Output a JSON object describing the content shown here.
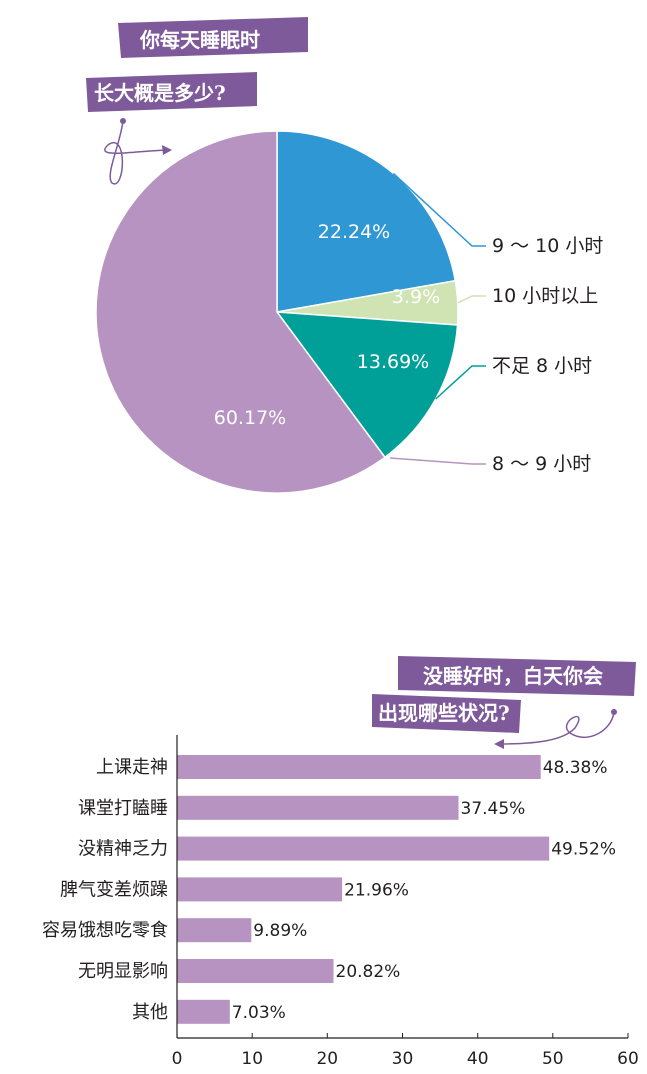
{
  "pie_title": {
    "line1": "你每天睡眠时",
    "line2": "长大概是多少?"
  },
  "bar_title": {
    "line1": "没睡好时，白天你会",
    "line2": "出现哪些状况?"
  },
  "colors": {
    "tag_bg": "#7e5a9b",
    "bar": "#b793c2",
    "axis": "#231f20"
  },
  "chart_data": [
    {
      "type": "pie",
      "title": "你每天睡眠时长大概是多少?",
      "slices": [
        {
          "legend": "9 ～ 10 小时",
          "value": 22.24,
          "label": "22.24%",
          "color": "#2e97d4"
        },
        {
          "legend": "10 小时以上",
          "value": 3.9,
          "label": "3.9%",
          "color": "#cfe3b3",
          "label_color": "#1a9b4a"
        },
        {
          "legend": "不足 8 小时",
          "value": 13.69,
          "label": "13.69%",
          "color": "#00a098"
        },
        {
          "legend": "8 ～ 9 小时",
          "value": 60.17,
          "label": "60.17%",
          "color": "#b793c2"
        }
      ]
    },
    {
      "type": "bar",
      "orientation": "horizontal",
      "title": "没睡好时，白天你会出现哪些状况?",
      "categories": [
        "上课走神",
        "课堂打瞌睡",
        "没精神乏力",
        "脾气变差烦躁",
        "容易饿想吃零食",
        "无明显影响",
        "其他"
      ],
      "values": [
        48.38,
        37.45,
        49.52,
        21.96,
        9.89,
        20.82,
        7.03
      ],
      "value_labels": [
        "48.38%",
        "37.45%",
        "49.52%",
        "21.96%",
        "9.89%",
        "20.82%",
        "7.03%"
      ],
      "xlim": [
        0,
        60
      ],
      "xticks": [
        "0",
        "10",
        "20",
        "30",
        "40",
        "50",
        "60"
      ]
    }
  ]
}
